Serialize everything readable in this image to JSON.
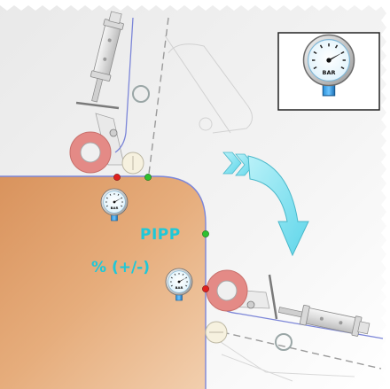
{
  "labels": {
    "pipp": "PIPP",
    "percent": "% (+/-)"
  },
  "gauge": {
    "unit_label": "BAR"
  },
  "colors": {
    "sheet": "#e3a979",
    "accent_text": "#1ec8d8",
    "arrow": "#8ee8f5",
    "roller": "#e48a86",
    "point_red": "#e0201e",
    "point_green": "#2fc02f",
    "line": "#7c86d8"
  },
  "icons": [
    "pressure-gauge-icon",
    "pneumatic-cylinder-icon",
    "roller-icon",
    "curved-arrow-icon"
  ]
}
